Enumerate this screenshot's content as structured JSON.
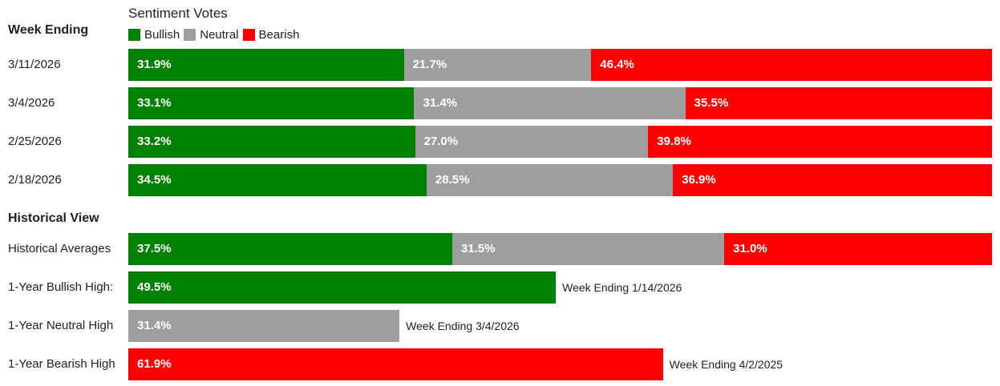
{
  "chart_data": {
    "type": "bar",
    "orientation": "horizontal",
    "stacked": true,
    "legend_title": "Sentiment Votes",
    "legend": [
      "Bullish",
      "Neutral",
      "Bearish"
    ],
    "colors": {
      "Bullish": "#008000",
      "Neutral": "#9e9e9e",
      "Bearish": "#ff0000"
    },
    "weekly": {
      "heading": "Week Ending",
      "rows": [
        {
          "label": "3/11/2026",
          "values": [
            31.9,
            21.7,
            46.4
          ],
          "texts": [
            "31.9%",
            "21.7%",
            "46.4%"
          ]
        },
        {
          "label": "3/4/2026",
          "values": [
            33.1,
            31.4,
            35.5
          ],
          "texts": [
            "33.1%",
            "31.4%",
            "35.5%"
          ]
        },
        {
          "label": "2/25/2026",
          "values": [
            33.2,
            27.0,
            39.8
          ],
          "texts": [
            "33.2%",
            "27.0%",
            "39.8%"
          ]
        },
        {
          "label": "2/18/2026",
          "values": [
            34.5,
            28.5,
            36.9
          ],
          "texts": [
            "34.5%",
            "28.5%",
            "36.9%"
          ]
        }
      ]
    },
    "historical": {
      "heading": "Historical View",
      "rows": [
        {
          "label": "Historical Averages",
          "values": [
            37.5,
            31.5,
            31.0
          ],
          "texts": [
            "37.5%",
            "31.5%",
            "31.0%"
          ]
        }
      ],
      "highs": [
        {
          "label": "1-Year Bullish High:",
          "series": "Bullish",
          "value": 49.5,
          "text": "49.5%",
          "note": "Week Ending 1/14/2026"
        },
        {
          "label": "1-Year Neutral High",
          "series": "Neutral",
          "value": 31.4,
          "text": "31.4%",
          "note": "Week Ending 3/4/2026"
        },
        {
          "label": "1-Year Bearish High",
          "series": "Bearish",
          "value": 61.9,
          "text": "61.9%",
          "note": "Week Ending 4/2/2025"
        }
      ]
    },
    "xlim": [
      0,
      100
    ]
  }
}
